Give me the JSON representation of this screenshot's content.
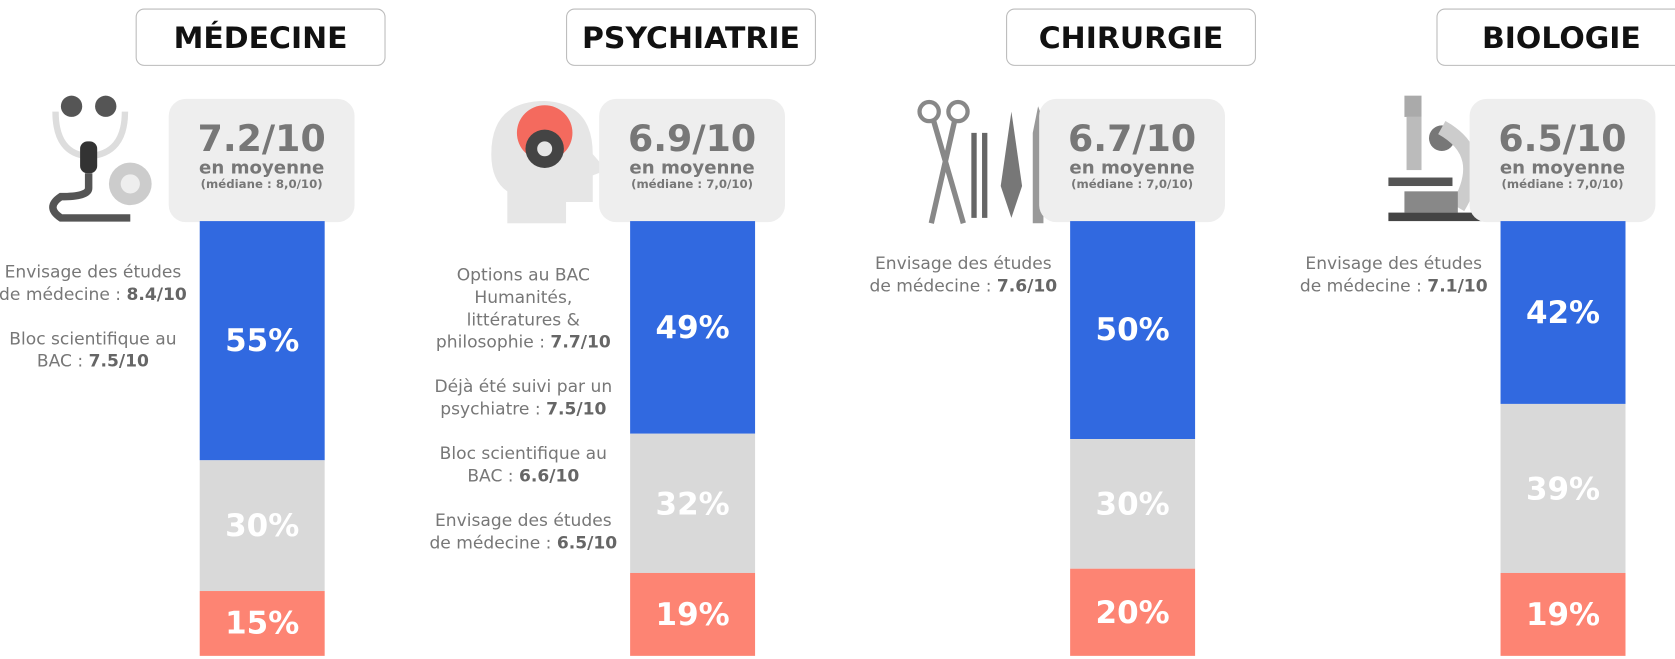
{
  "panels": [
    {
      "title": "MÉDECINE",
      "score": "7.2/10",
      "avg_label": "en moyenne",
      "median": "(médiane : 8,0/10)",
      "notes": [
        {
          "text": "Envisage des études de médecine : ",
          "score": "8.4/10"
        },
        {
          "text": "Bloc scientifique au BAC : ",
          "score": "7.5/10"
        }
      ],
      "values": [
        55,
        30,
        15
      ],
      "value_labels": [
        "55%",
        "30%",
        "15%"
      ],
      "colors": [
        "#3169e0",
        "#d9d9d9",
        "#fd8473"
      ]
    },
    {
      "title": "PSYCHIATRIE",
      "score": "6.9/10",
      "avg_label": "en moyenne",
      "median": "(médiane : 7,0/10)",
      "notes": [
        {
          "text": "Options au BAC Humanités, littératures & philosophie : ",
          "score": "7.7/10"
        },
        {
          "text": "Déjà été suivi par un psychiatre : ",
          "score": "7.5/10"
        },
        {
          "text": "Bloc scientifique au BAC : ",
          "score": "6.6/10"
        },
        {
          "text": "Envisage des études de médecine : ",
          "score": "6.5/10"
        }
      ],
      "values": [
        49,
        32,
        19
      ],
      "value_labels": [
        "49%",
        "32%",
        "19%"
      ],
      "colors": [
        "#3169e0",
        "#d9d9d9",
        "#fd8473"
      ]
    },
    {
      "title": "CHIRURGIE",
      "score": "6.7/10",
      "avg_label": "en moyenne",
      "median": "(médiane : 7,0/10)",
      "notes": [
        {
          "text": "Envisage des études de médecine : ",
          "score": "7.6/10"
        }
      ],
      "values": [
        50,
        30,
        20
      ],
      "value_labels": [
        "50%",
        "30%",
        "20%"
      ],
      "colors": [
        "#3169e0",
        "#d9d9d9",
        "#fd8473"
      ]
    },
    {
      "title": "BIOLOGIE",
      "score": "6.5/10",
      "avg_label": "en moyenne",
      "median": "(médiane : 7,0/10)",
      "notes": [
        {
          "text": "Envisage des études de médecine : ",
          "score": "7.1/10"
        }
      ],
      "values": [
        42,
        39,
        19
      ],
      "value_labels": [
        "42%",
        "39%",
        "19%"
      ],
      "colors": [
        "#3169e0",
        "#d9d9d9",
        "#fd8473"
      ]
    }
  ]
}
